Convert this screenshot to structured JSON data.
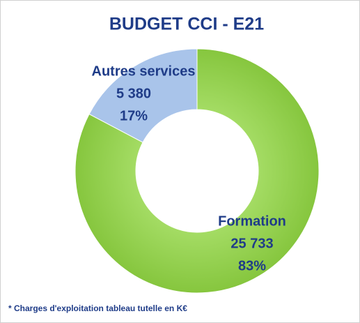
{
  "chart_data": {
    "type": "donut",
    "title": "BUDGET CCI - E21",
    "categories": [
      "Formation",
      "Autres services"
    ],
    "values": [
      25733,
      5380
    ],
    "value_labels": [
      "25 733",
      "5 380"
    ],
    "percents": [
      83,
      17
    ],
    "percent_labels": [
      "83%",
      "17%"
    ],
    "colors": [
      "#92d050",
      "#a9c4ea"
    ],
    "note": "* Charges d'exploitation  tableau tutelle en K€"
  }
}
